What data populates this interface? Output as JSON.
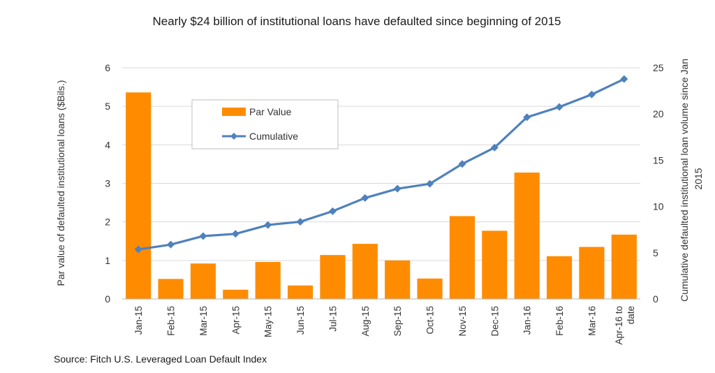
{
  "chart_data": {
    "type": "bar",
    "title": "Nearly $24 billion of institutional loans have defaulted since beginning of 2015",
    "ylabel": "Par value of defaulted institutional loans ($Bils.)",
    "y2label": "Cumulative defaulted institutional loan volume since Jan 2015",
    "ylim": [
      0,
      6
    ],
    "y2lim": [
      0,
      25
    ],
    "yticks": [
      "0",
      "1",
      "2",
      "3",
      "4",
      "5",
      "6"
    ],
    "y2ticks": [
      "0",
      "5",
      "10",
      "15",
      "20",
      "25"
    ],
    "categories": [
      "Jan-15",
      "Feb-15",
      "Mar-15",
      "Apr-15",
      "May-15",
      "Jun-15",
      "Jul-15",
      "Aug-15",
      "Sep-15",
      "Oct-15",
      "Nov-15",
      "Dec-15",
      "Jan-16",
      "Feb-16",
      "Mar-16",
      "Apr-16 to date"
    ],
    "series": [
      {
        "name": "Par Value",
        "type": "bar",
        "axis": "left",
        "color": "#ff8c00",
        "values": [
          5.36,
          0.52,
          0.92,
          0.24,
          0.96,
          0.35,
          1.14,
          1.43,
          1.0,
          0.53,
          2.15,
          1.77,
          3.28,
          1.11,
          1.35,
          1.67
        ]
      },
      {
        "name": "Cumulative",
        "type": "line",
        "axis": "right",
        "color": "#4f81bd",
        "values": [
          5.36,
          5.88,
          6.8,
          7.04,
          8.0,
          8.35,
          9.49,
          10.92,
          11.92,
          12.45,
          14.6,
          16.37,
          19.65,
          20.76,
          22.11,
          23.78
        ]
      }
    ],
    "legend": {
      "position": "upper-left-inside",
      "labels": [
        "Par Value",
        "Cumulative"
      ]
    },
    "grid": "horizontal"
  },
  "source": "Source: Fitch U.S. Leveraged Loan Default Index"
}
